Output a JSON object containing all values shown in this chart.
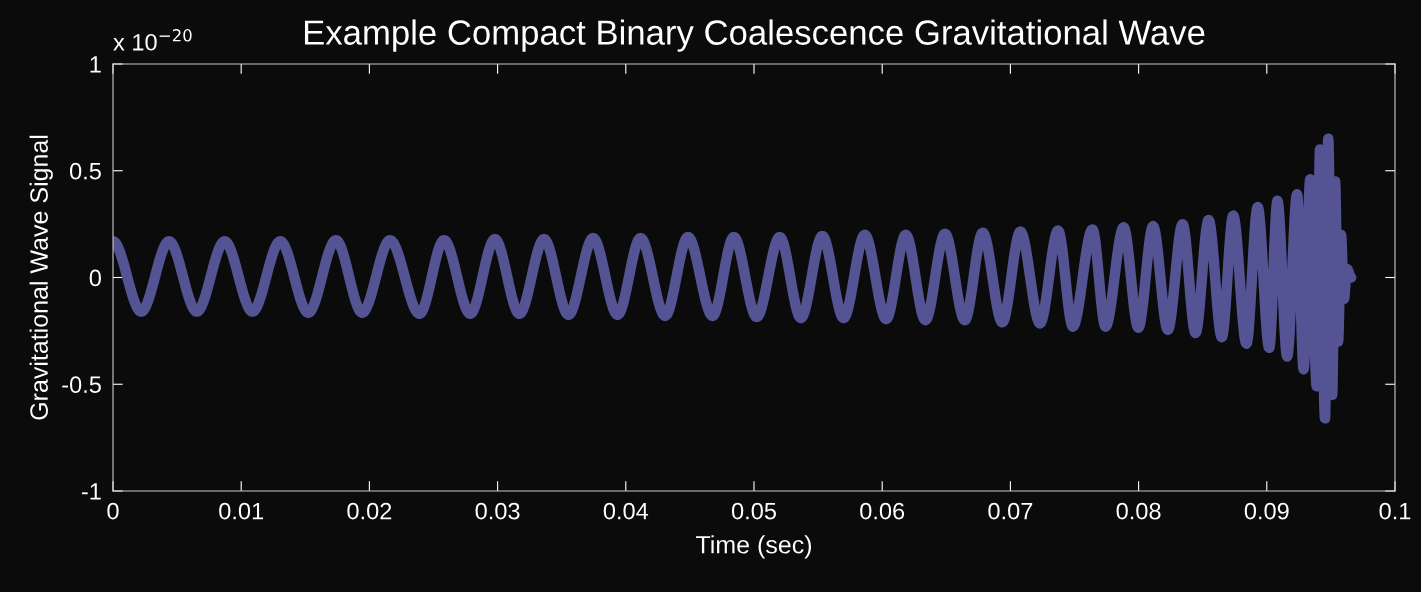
{
  "chart_data": {
    "type": "line",
    "title": "Example Compact Binary Coalescence Gravitational Wave",
    "xlabel": "Time (sec)",
    "ylabel": "Gravitational Wave Signal",
    "annotations": [
      "x 10$^{−20}$"
    ],
    "xlim": [
      0,
      0.1
    ],
    "ylim": [
      -1,
      1
    ],
    "xticks": [
      0,
      0.01,
      0.02,
      0.03,
      0.04,
      0.05,
      0.06,
      0.07,
      0.08,
      0.09,
      0.1
    ],
    "yticks": [
      -1,
      -0.5,
      0,
      0.5,
      1
    ],
    "grid": false,
    "legend": false,
    "marker": "none",
    "line_style": "solid",
    "series": [
      {
        "color": "#545494",
        "x": [
          0,
          0.0022,
          0.00437,
          0.00654,
          0.00871,
          0.01088,
          0.01305,
          0.01523,
          0.01739,
          0.01944,
          0.02161,
          0.02391,
          0.02582,
          0.02787,
          0.02979,
          0.0317,
          0.03362,
          0.03553,
          0.03745,
          0.03936,
          0.04115,
          0.04307,
          0.04485,
          0.04677,
          0.04843,
          0.05021,
          0.05201,
          0.05366,
          0.05533,
          0.05699,
          0.05864,
          0.06031,
          0.06184,
          0.06337,
          0.0649,
          0.06644,
          0.06784,
          0.06937,
          0.07078,
          0.07231,
          0.07372,
          0.07487,
          0.0764,
          0.07742,
          0.07883,
          0.07998,
          0.08113,
          0.08228,
          0.08343,
          0.08444,
          0.08546,
          0.08649,
          0.08738,
          0.08841,
          0.08929,
          0.09019,
          0.09083,
          0.09159,
          0.09236,
          0.09287,
          0.09339,
          0.09389,
          0.09415,
          0.09454,
          0.09479,
          0.0951,
          0.09533,
          0.09556,
          0.09579,
          0.09602,
          0.09625,
          0.09658
        ],
        "values": [
          0.17,
          -0.16,
          0.17,
          -0.16,
          0.17,
          -0.16,
          0.17,
          -0.165,
          0.175,
          -0.165,
          0.175,
          -0.17,
          0.175,
          -0.17,
          0.18,
          -0.17,
          0.18,
          -0.175,
          0.185,
          -0.175,
          0.185,
          -0.18,
          0.19,
          -0.18,
          0.19,
          -0.185,
          0.19,
          -0.19,
          0.195,
          -0.19,
          0.2,
          -0.195,
          0.2,
          -0.2,
          0.205,
          -0.2,
          0.21,
          -0.21,
          0.215,
          -0.215,
          0.22,
          -0.23,
          0.225,
          -0.23,
          0.235,
          -0.235,
          0.24,
          -0.245,
          0.25,
          -0.26,
          0.27,
          -0.28,
          0.29,
          -0.31,
          0.33,
          -0.33,
          0.36,
          -0.37,
          0.39,
          -0.43,
          0.46,
          -0.51,
          0.6,
          -0.66,
          0.65,
          -0.55,
          0.45,
          -0.3,
          0.2,
          -0.1,
          0.04,
          0
        ]
      }
    ]
  }
}
